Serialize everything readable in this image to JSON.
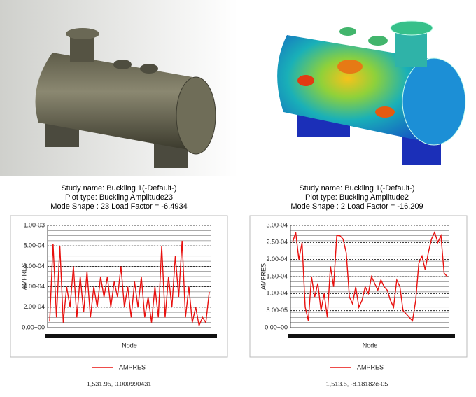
{
  "chart_data": [
    {
      "type": "line",
      "title": "Study name: Buckling 1(-Default-)",
      "subtitle": "Plot type: Buckling Amplitude23",
      "caption": "Mode Shape : 23  Load Factor = -6.4934",
      "xlabel": "Node",
      "ylabel": "AMPRES",
      "footer": "1,531.95, 0.000990431",
      "grid": true,
      "ylim": [
        0,
        0.001
      ],
      "yticks": [
        {
          "value": 0,
          "label": "0.00+00"
        },
        {
          "value": 0.0002,
          "label": "2.00-04"
        },
        {
          "value": 0.0004,
          "label": "4.00-04"
        },
        {
          "value": 0.0006,
          "label": "6.00-04"
        },
        {
          "value": 0.0008,
          "label": "8.00-04"
        },
        {
          "value": 0.001,
          "label": "1.00-03"
        }
      ],
      "series": [
        {
          "name": "AMPRES",
          "color": "#e8100e",
          "values": [
            6e-05,
            0.00082,
            0.0001,
            0.0008,
            5e-05,
            0.0004,
            0.0002,
            0.0006,
            0.0001,
            0.0005,
            0.00015,
            0.00055,
            0.0001,
            0.0004,
            0.0002,
            0.0005,
            0.0003,
            0.0005,
            0.0002,
            0.00045,
            0.0003,
            0.0006,
            0.0002,
            0.0004,
            0.0001,
            0.00045,
            0.0002,
            0.0005,
            0.0001,
            0.0003,
            5e-05,
            0.0004,
            0.0001,
            0.0008,
            0.0001,
            0.0005,
            0.0002,
            0.0007,
            0.0003,
            0.00085,
            0.0001,
            0.0004,
            5e-05,
            0.0002,
            2e-05,
            0.0001,
            5e-05,
            0.00035
          ]
        }
      ]
    },
    {
      "type": "line",
      "title": "Study name: Buckling 1(-Default-)",
      "subtitle": "Plot type: Buckling Amplitude2",
      "caption": "Mode Shape : 2  Load Factor = -16.209",
      "xlabel": "Node",
      "ylabel": "AMPRES",
      "footer": "1,513.5, -8.18182e-05",
      "grid": true,
      "ylim": [
        0,
        0.0003
      ],
      "yticks": [
        {
          "value": 0,
          "label": "0.00+00"
        },
        {
          "value": 5e-05,
          "label": "5.00-05"
        },
        {
          "value": 0.0001,
          "label": "1.00-04"
        },
        {
          "value": 0.00015,
          "label": "1.50-04"
        },
        {
          "value": 0.0002,
          "label": "2.00-04"
        },
        {
          "value": 0.00025,
          "label": "2.50-04"
        },
        {
          "value": 0.0003,
          "label": "3.00-04"
        }
      ],
      "series": [
        {
          "name": "AMPRES",
          "color": "#e8100e",
          "values": [
            0.00025,
            0.00028,
            0.0002,
            0.00025,
            6e-05,
            2e-05,
            0.00015,
            9e-05,
            0.00013,
            5e-05,
            0.0001,
            3e-05,
            0.00018,
            0.00012,
            0.00027,
            0.00027,
            0.00026,
            0.00022,
            9e-05,
            7e-05,
            0.00012,
            6e-05,
            8e-05,
            0.00012,
            0.0001,
            0.00015,
            0.00013,
            0.00011,
            0.00014,
            0.00012,
            0.00011,
            8e-05,
            6e-05,
            0.00014,
            0.00012,
            5e-05,
            4e-05,
            3e-05,
            2e-05,
            8e-05,
            0.00019,
            0.00021,
            0.00017,
            0.00022,
            0.00026,
            0.00028,
            0.00025,
            0.00027,
            0.00016,
            0.00015
          ]
        }
      ]
    }
  ]
}
